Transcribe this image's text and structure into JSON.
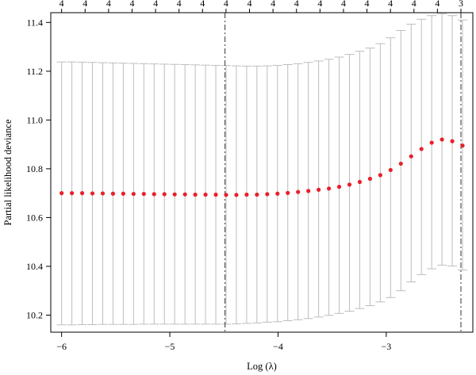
{
  "chart_data": {
    "type": "scatter",
    "title": "",
    "xlabel": "Log (λ)",
    "ylabel": "Partial likelihood deviance",
    "xlim": [
      -6.1,
      -2.2
    ],
    "ylim": [
      10.13,
      11.44
    ],
    "x_ticks": [
      -6,
      -5,
      -4,
      -3
    ],
    "x_tick_labels": [
      "−6",
      "−5",
      "−4",
      "−3"
    ],
    "y_ticks": [
      10.2,
      10.4,
      10.6,
      10.8,
      11.0,
      11.2,
      11.4
    ],
    "y_tick_labels": [
      "10.2",
      "10.4",
      "10.6",
      "10.8",
      "11.0",
      "11.2",
      "11.4"
    ],
    "top_axis_labels": [
      "4",
      "4",
      "4",
      "4",
      "4",
      "4",
      "4",
      "4",
      "4",
      "4",
      "4",
      "4",
      "4",
      "4",
      "4",
      "4",
      "4",
      "3"
    ],
    "grid": false,
    "reference_lines_x": [
      -4.49,
      -2.31
    ],
    "colors": {
      "points": "#e8212b",
      "error_bars": "#bdbdbd",
      "reference_lines": "#333333"
    },
    "x": [
      -6.0,
      -5.905,
      -5.81,
      -5.715,
      -5.62,
      -5.525,
      -5.43,
      -5.335,
      -5.24,
      -5.145,
      -5.05,
      -4.955,
      -4.86,
      -4.765,
      -4.67,
      -4.575,
      -4.48,
      -4.385,
      -4.29,
      -4.195,
      -4.1,
      -4.005,
      -3.91,
      -3.815,
      -3.72,
      -3.625,
      -3.53,
      -3.435,
      -3.34,
      -3.245,
      -3.15,
      -3.055,
      -2.96,
      -2.865,
      -2.77,
      -2.675,
      -2.58,
      -2.485,
      -2.39,
      -2.295
    ],
    "y": [
      10.7,
      10.7,
      10.7,
      10.699,
      10.699,
      10.698,
      10.698,
      10.697,
      10.697,
      10.696,
      10.696,
      10.695,
      10.695,
      10.694,
      10.694,
      10.694,
      10.693,
      10.693,
      10.694,
      10.694,
      10.696,
      10.698,
      10.701,
      10.705,
      10.709,
      10.714,
      10.719,
      10.726,
      10.735,
      10.746,
      10.759,
      10.774,
      10.795,
      10.821,
      10.851,
      10.881,
      10.907,
      10.92,
      10.913,
      10.895
    ],
    "upper": [
      11.238,
      11.238,
      11.237,
      11.236,
      11.235,
      11.234,
      11.233,
      11.232,
      11.231,
      11.23,
      11.229,
      11.228,
      11.227,
      11.226,
      11.225,
      11.224,
      11.223,
      11.222,
      11.221,
      11.221,
      11.222,
      11.224,
      11.227,
      11.231,
      11.236,
      11.242,
      11.249,
      11.258,
      11.269,
      11.282,
      11.295,
      11.313,
      11.337,
      11.367,
      11.393,
      11.413,
      11.428,
      11.436,
      11.428,
      11.41
    ],
    "lower": [
      10.16,
      10.16,
      10.161,
      10.161,
      10.162,
      10.162,
      10.162,
      10.162,
      10.163,
      10.163,
      10.163,
      10.163,
      10.163,
      10.163,
      10.163,
      10.163,
      10.163,
      10.164,
      10.166,
      10.168,
      10.171,
      10.173,
      10.177,
      10.181,
      10.186,
      10.192,
      10.199,
      10.207,
      10.216,
      10.227,
      10.239,
      10.254,
      10.272,
      10.3,
      10.336,
      10.366,
      10.39,
      10.405,
      10.401,
      10.385
    ]
  }
}
